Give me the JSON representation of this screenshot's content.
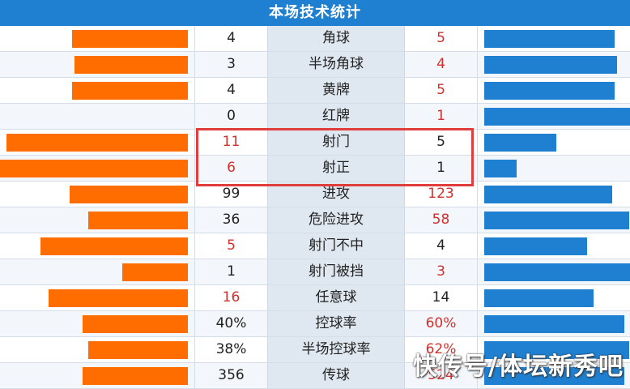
{
  "title": "本场技术统计",
  "colors": {
    "home": "#ff6c00",
    "away": "#1f7fd0",
    "higher": "#d0312d",
    "header": "#1f7fd0"
  },
  "stats": [
    {
      "label": "角球",
      "home": "4",
      "away": "5",
      "home_share": 0.44,
      "away_share": 0.56,
      "higher": "away"
    },
    {
      "label": "半场角球",
      "home": "3",
      "away": "4",
      "home_share": 0.43,
      "away_share": 0.57,
      "higher": "away"
    },
    {
      "label": "黄牌",
      "home": "4",
      "away": "5",
      "home_share": 0.44,
      "away_share": 0.56,
      "higher": "away"
    },
    {
      "label": "红牌",
      "home": "0",
      "away": "1",
      "home_share": 0.0,
      "away_share": 1.0,
      "higher": "away"
    },
    {
      "label": "射门",
      "home": "11",
      "away": "5",
      "home_share": 0.69,
      "away_share": 0.31,
      "higher": "home"
    },
    {
      "label": "射正",
      "home": "6",
      "away": "1",
      "home_share": 0.86,
      "away_share": 0.14,
      "higher": "home"
    },
    {
      "label": "进攻",
      "home": "99",
      "away": "123",
      "home_share": 0.45,
      "away_share": 0.55,
      "higher": "away"
    },
    {
      "label": "危险进攻",
      "home": "36",
      "away": "58",
      "home_share": 0.38,
      "away_share": 0.62,
      "higher": "away"
    },
    {
      "label": "射门不中",
      "home": "5",
      "away": "4",
      "home_share": 0.56,
      "away_share": 0.44,
      "higher": "home"
    },
    {
      "label": "射门被挡",
      "home": "1",
      "away": "3",
      "home_share": 0.25,
      "away_share": 0.75,
      "higher": "away"
    },
    {
      "label": "任意球",
      "home": "16",
      "away": "14",
      "home_share": 0.53,
      "away_share": 0.47,
      "higher": "home"
    },
    {
      "label": "控球率",
      "home": "40%",
      "away": "60%",
      "home_share": 0.4,
      "away_share": 0.6,
      "higher": "away"
    },
    {
      "label": "半场控球率",
      "home": "38%",
      "away": "62%",
      "home_share": 0.38,
      "away_share": 0.62,
      "higher": "away"
    },
    {
      "label": "传球",
      "home": "356",
      "away": "524",
      "home_share": 0.4,
      "away_share": 0.6,
      "higher": "away"
    }
  ],
  "watermark": "快传号/体坛新秀吧"
}
